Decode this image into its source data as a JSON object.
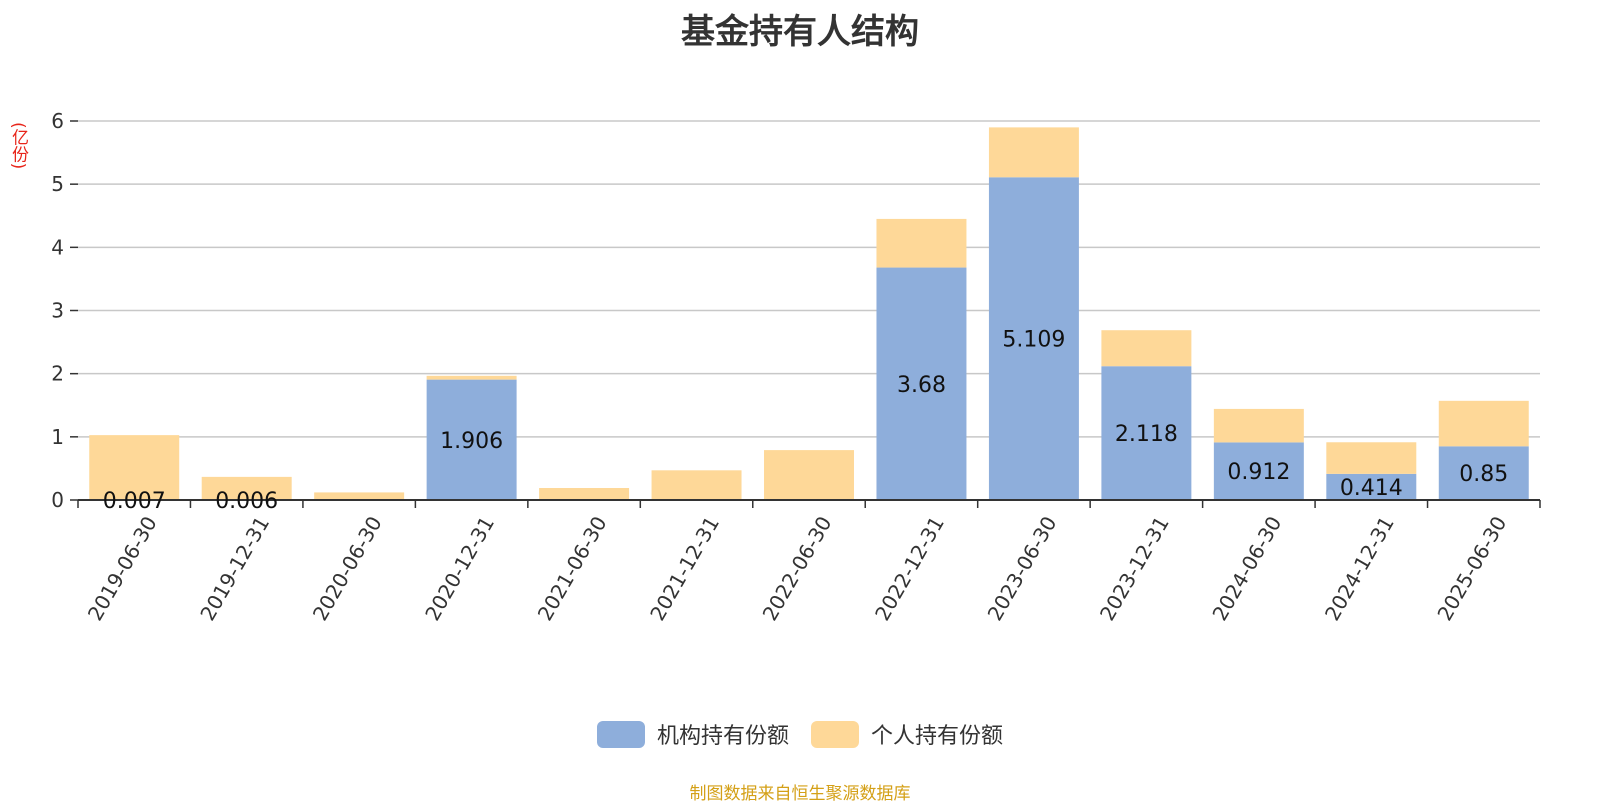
{
  "chart_data": {
    "type": "bar",
    "stacked": true,
    "title": "基金持有人结构",
    "unit": "(亿份)",
    "categories": [
      "2019-06-30",
      "2019-12-31",
      "2020-06-30",
      "2020-12-31",
      "2021-06-30",
      "2021-12-31",
      "2022-06-30",
      "2022-12-31",
      "2023-06-30",
      "2023-12-31",
      "2024-06-30",
      "2024-12-31",
      "2025-06-30"
    ],
    "ylim": [
      0,
      6
    ],
    "yticks": [
      "0",
      "1",
      "2",
      "3",
      "4",
      "5",
      "6"
    ],
    "grid": true,
    "legend_position": "bottom",
    "series": [
      {
        "name": "机构持有份额",
        "color": "#8eaedb",
        "values": [
          0.007,
          0.006,
          0,
          1.906,
          0,
          0,
          0,
          3.68,
          5.109,
          2.118,
          0.912,
          0.414,
          0.85
        ],
        "labels": [
          "0.007",
          "0.006",
          "",
          "1.906",
          "",
          "",
          "",
          "3.68",
          "5.109",
          "2.118",
          "0.912",
          "0.414",
          "0.85"
        ]
      },
      {
        "name": "个人持有份额",
        "color": "#fed898",
        "values": [
          1.02,
          0.36,
          0.12,
          0.06,
          0.19,
          0.47,
          0.79,
          0.77,
          0.79,
          0.57,
          0.53,
          0.5,
          0.72
        ]
      }
    ]
  },
  "source_note": "制图数据来自恒生聚源数据库"
}
